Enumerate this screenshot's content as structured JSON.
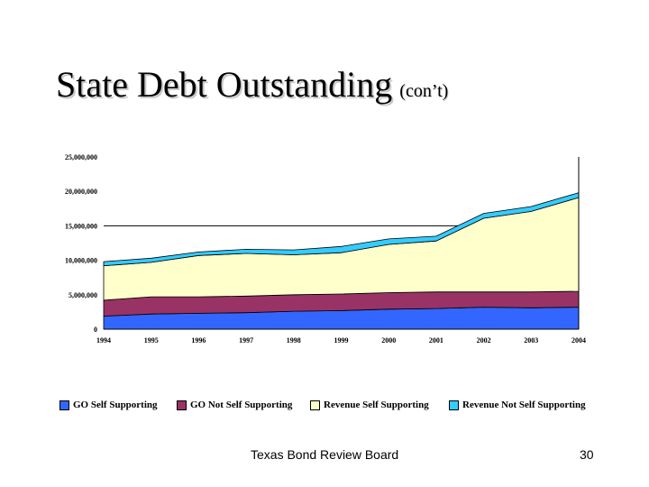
{
  "slide": {
    "title": "State Debt Outstanding",
    "subtitle": "(con’t)",
    "footer": "Texas Bond Review Board",
    "page_number": "30"
  },
  "chart_data": {
    "type": "area",
    "stacked": true,
    "categories": [
      "1994",
      "1995",
      "1996",
      "1997",
      "1998",
      "1999",
      "2000",
      "2001",
      "2002",
      "2003",
      "2004"
    ],
    "ylim": [
      0,
      25000000
    ],
    "y_ticks": [
      "0",
      "5,000,000",
      "10,000,000",
      "15,000,000",
      "20,000,000",
      "25,000,000"
    ],
    "reference_line": 15000000,
    "legend_position": "bottom",
    "series": [
      {
        "name": "GO Self Supporting",
        "color": "#3366ff",
        "values": [
          1900000,
          2200000,
          2300000,
          2400000,
          2600000,
          2700000,
          2900000,
          3000000,
          3200000,
          3100000,
          3200000
        ]
      },
      {
        "name": "GO Not Self Supporting",
        "color": "#993366",
        "values": [
          2300000,
          2500000,
          2400000,
          2400000,
          2400000,
          2400000,
          2400000,
          2400000,
          2200000,
          2300000,
          2300000
        ]
      },
      {
        "name": "Revenue Self Supporting",
        "color": "#ffffcc",
        "values": [
          5000000,
          5000000,
          6000000,
          6200000,
          5800000,
          6000000,
          7000000,
          7400000,
          10700000,
          11700000,
          13600000
        ]
      },
      {
        "name": "Revenue Not Self Supporting",
        "color": "#33ccff",
        "values": [
          600000,
          600000,
          500000,
          600000,
          700000,
          900000,
          800000,
          700000,
          700000,
          700000,
          700000
        ]
      }
    ]
  }
}
